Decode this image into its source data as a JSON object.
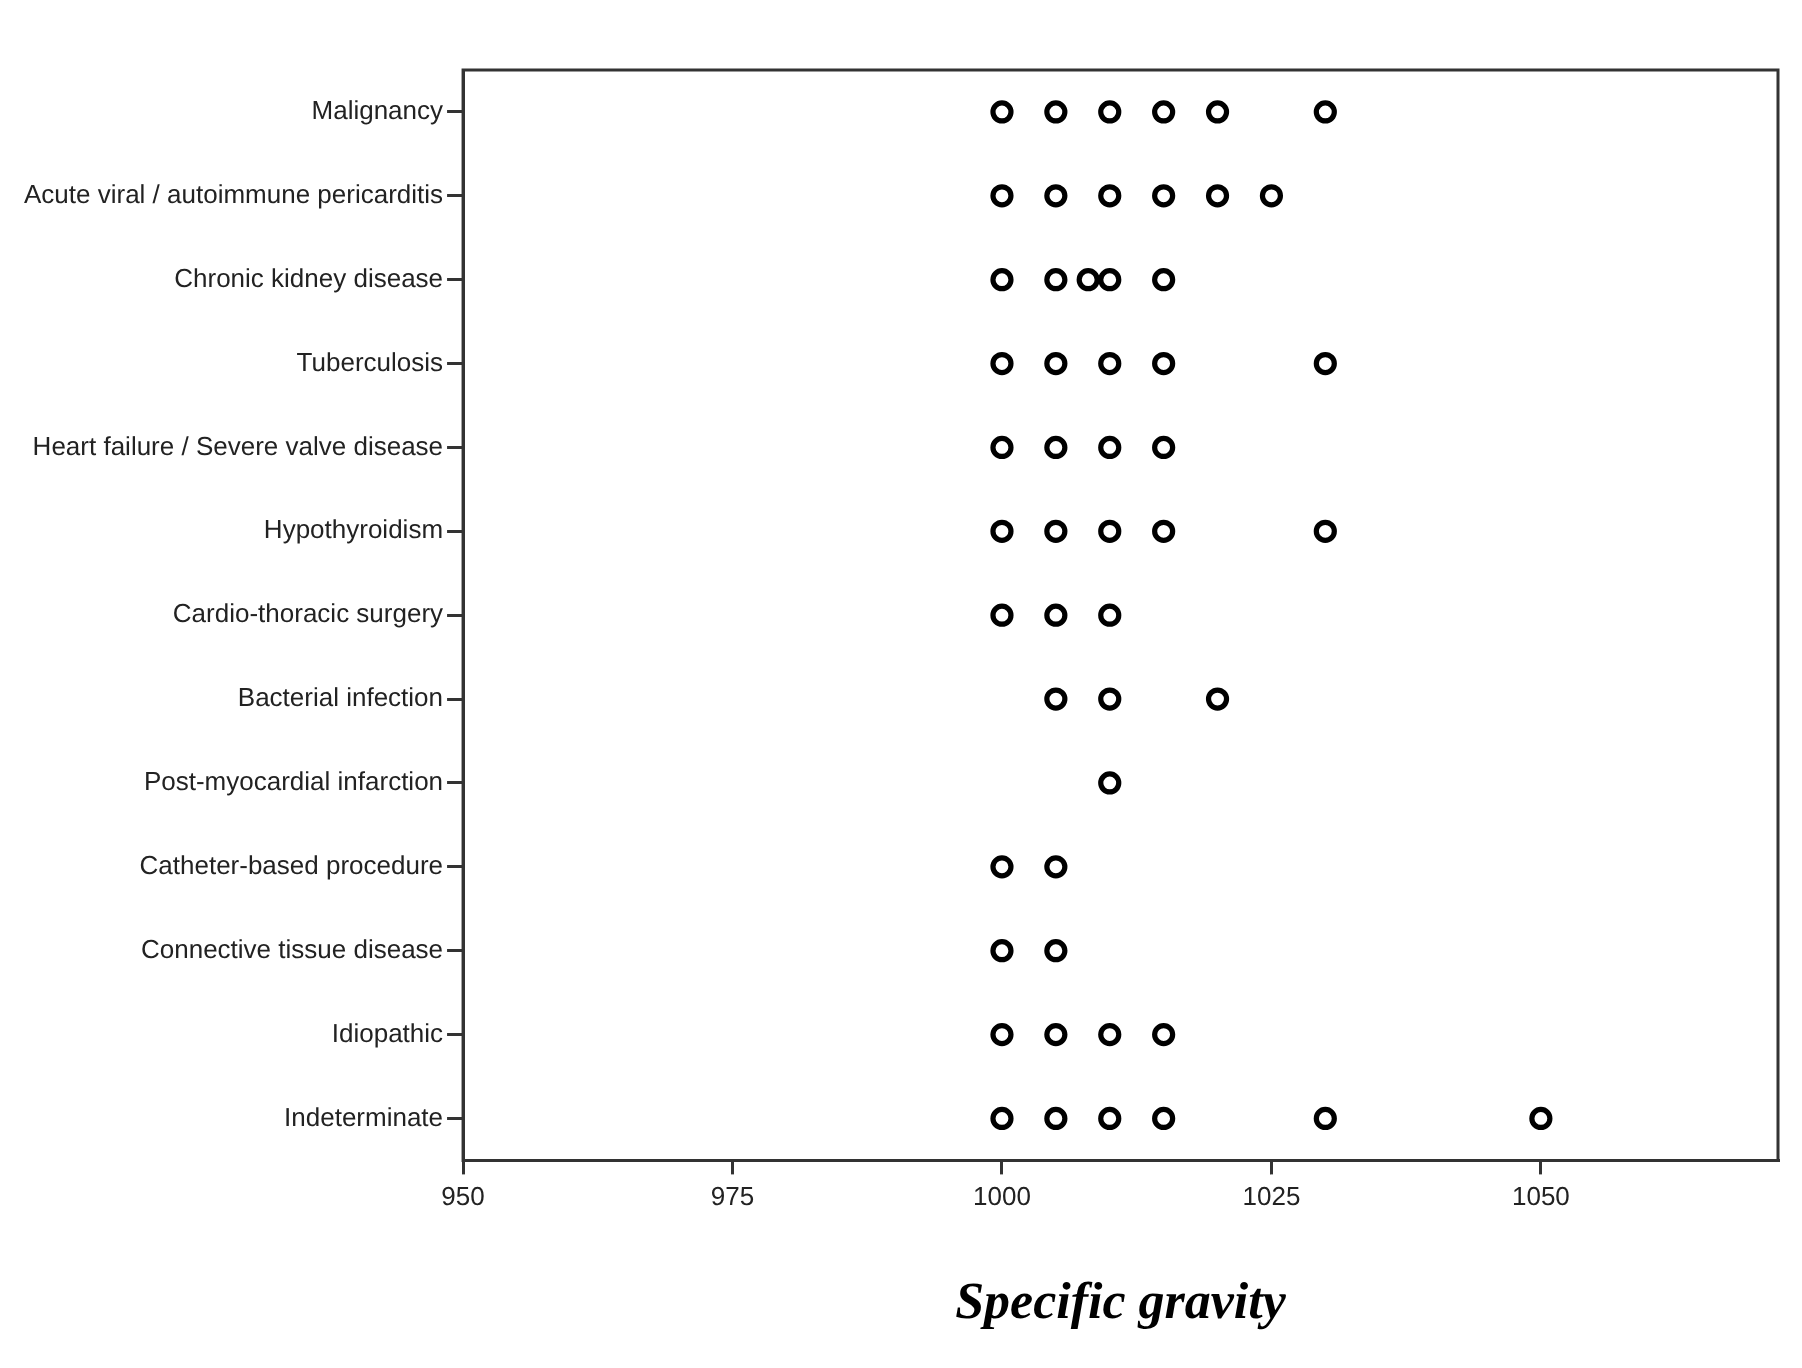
{
  "chart_data": {
    "type": "scatter",
    "orientation": "horizontal",
    "xlabel": "Specific gravity",
    "categories": [
      "Malignancy",
      "Acute viral / autoimmune pericarditis",
      "Chronic kidney disease",
      "Tuberculosis",
      "Heart failure / Severe valve disease",
      "Hypothyroidism",
      "Cardio-thoracic surgery",
      "Bacterial infection",
      "Post-myocardial infarction",
      "Catheter-based procedure",
      "Connective tissue disease",
      "Idiopathic",
      "Indeterminate"
    ],
    "series": [
      {
        "color": "#000000",
        "x": [
          "Malignancy",
          "Malignancy",
          "Malignancy",
          "Malignancy",
          "Malignancy",
          "Malignancy",
          "Acute viral / autoimmune pericarditis",
          "Acute viral / autoimmune pericarditis",
          "Acute viral / autoimmune pericarditis",
          "Acute viral / autoimmune pericarditis",
          "Acute viral / autoimmune pericarditis",
          "Acute viral / autoimmune pericarditis",
          "Chronic kidney disease",
          "Chronic kidney disease",
          "Chronic kidney disease",
          "Chronic kidney disease",
          "Chronic kidney disease",
          "Tuberculosis",
          "Tuberculosis",
          "Tuberculosis",
          "Tuberculosis",
          "Tuberculosis",
          "Heart failure / Severe valve disease",
          "Heart failure / Severe valve disease",
          "Heart failure / Severe valve disease",
          "Heart failure / Severe valve disease",
          "Hypothyroidism",
          "Hypothyroidism",
          "Hypothyroidism",
          "Hypothyroidism",
          "Hypothyroidism",
          "Cardio-thoracic surgery",
          "Cardio-thoracic surgery",
          "Cardio-thoracic surgery",
          "Bacterial infection",
          "Bacterial infection",
          "Bacterial infection",
          "Post-myocardial infarction",
          "Catheter-based procedure",
          "Catheter-based procedure",
          "Connective tissue disease",
          "Connective tissue disease",
          "Idiopathic",
          "Idiopathic",
          "Idiopathic",
          "Idiopathic",
          "Indeterminate",
          "Indeterminate",
          "Indeterminate",
          "Indeterminate",
          "Indeterminate",
          "Indeterminate"
        ],
        "values": [
          1000,
          1005,
          1010,
          1015,
          1020,
          1030,
          1000,
          1005,
          1010,
          1015,
          1020,
          1025,
          1000,
          1005,
          1008,
          1010,
          1015,
          1000,
          1005,
          1010,
          1015,
          1030,
          1000,
          1005,
          1010,
          1015,
          1000,
          1005,
          1010,
          1015,
          1030,
          1000,
          1005,
          1010,
          1005,
          1010,
          1020,
          1010,
          1000,
          1005,
          1000,
          1005,
          1000,
          1005,
          1010,
          1015,
          1000,
          1005,
          1010,
          1015,
          1030,
          1050
        ]
      }
    ],
    "xlim": [
      950,
      1072
    ],
    "xticks": [
      950,
      975,
      1000,
      1025,
      1050
    ],
    "grid": false,
    "legend": false,
    "marker": "circle"
  }
}
